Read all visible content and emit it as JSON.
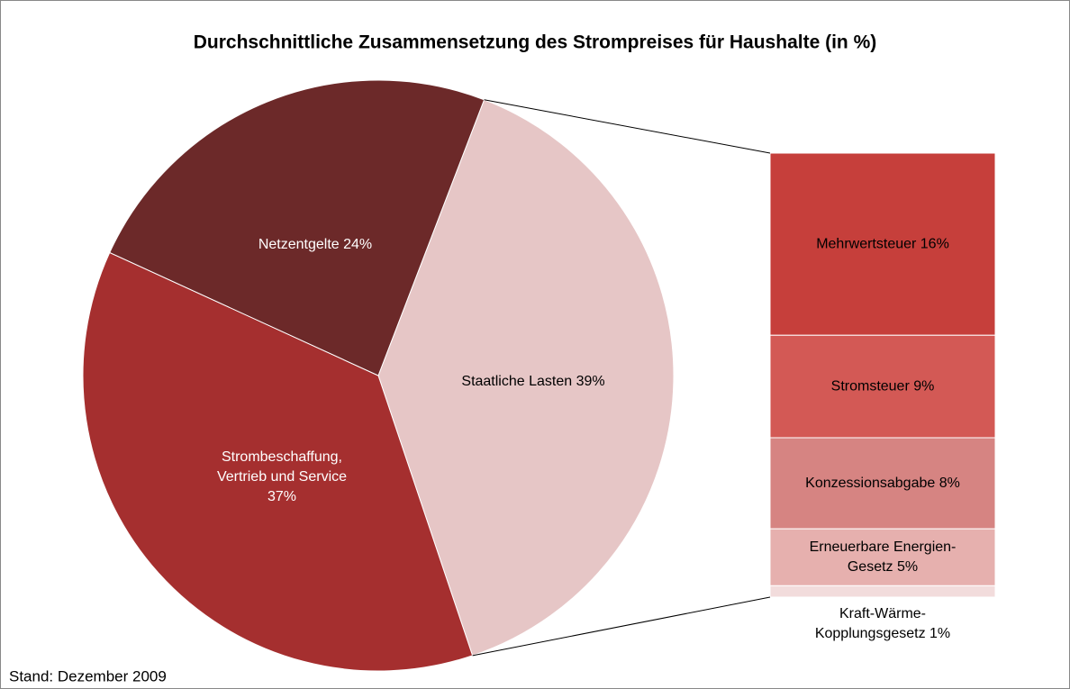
{
  "chart_data": {
    "type": "pie-of-bar",
    "title": "Durchschnittliche Zusammensetzung des Strompreises für Haushalte (in %)",
    "footnote": "Stand: Dezember 2009",
    "categories": [
      [
        "Staatliche Lasten 39%"
      ],
      [
        "Strombeschaffung,",
        "Vertrieb und Service",
        "37%"
      ],
      [
        "Netzentgelte 24%"
      ]
    ],
    "values": [
      39,
      37,
      24
    ],
    "colors": [
      "#e6c6c6",
      "#a52f2f",
      "#6c2929"
    ],
    "breakdown": {
      "categories": [
        [
          "Mehrwertsteuer 16%"
        ],
        [
          "Stromsteuer 9%"
        ],
        [
          "Konzessionsabgabe 8%"
        ],
        [
          "Erneuerbare Energien-",
          "Gesetz 5%"
        ],
        [
          "Kraft-Wärme-",
          "Kopplungsgesetz 1%"
        ]
      ],
      "values": [
        16,
        9,
        8,
        5,
        1
      ],
      "colors": [
        "#c63f3b",
        "#d35955",
        "#d68482",
        "#e6b0ae",
        "#f2dcdc"
      ]
    }
  }
}
